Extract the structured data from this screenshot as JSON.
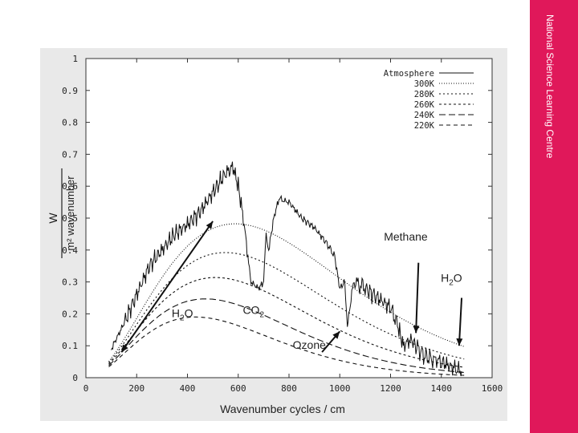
{
  "sidebar": {
    "label": "National Science Learning Centre",
    "color": "#e0185a"
  },
  "figure": {
    "background": "#e9e9e9"
  },
  "chart_data": {
    "type": "line",
    "xlabel": "Wavenumber cycles / cm",
    "ylabel_numerator": "W",
    "ylabel_denominator": "m² wavenumber",
    "xlim": [
      0,
      1600
    ],
    "ylim": [
      0,
      1
    ],
    "x_ticks": [
      0,
      200,
      400,
      600,
      800,
      1000,
      1200,
      1400,
      1600
    ],
    "y_ticks": [
      0,
      0.1,
      0.2,
      0.3,
      0.4,
      0.5,
      0.6,
      0.7,
      0.8,
      0.9,
      1
    ],
    "legend_position": "top-right",
    "series": [
      {
        "name": "Atmosphere",
        "style": "solid",
        "x": [
          100,
          150,
          200,
          250,
          300,
          350,
          400,
          450,
          500,
          550,
          580,
          600,
          620,
          650,
          680,
          700,
          710,
          720,
          740,
          760,
          800,
          850,
          900,
          950,
          980,
          1000,
          1020,
          1030,
          1050,
          1060,
          1100,
          1150,
          1200,
          1230,
          1250,
          1280,
          1300,
          1330,
          1360,
          1400,
          1450,
          1480
        ],
        "y": [
          0.09,
          0.17,
          0.26,
          0.35,
          0.4,
          0.45,
          0.48,
          0.52,
          0.58,
          0.64,
          0.66,
          0.6,
          0.5,
          0.3,
          0.28,
          0.3,
          0.45,
          0.4,
          0.5,
          0.56,
          0.55,
          0.5,
          0.47,
          0.42,
          0.38,
          0.28,
          0.3,
          0.16,
          0.28,
          0.3,
          0.28,
          0.25,
          0.22,
          0.16,
          0.1,
          0.12,
          0.1,
          0.07,
          0.06,
          0.05,
          0.03,
          0.02
        ]
      },
      {
        "name": "300K",
        "style": "dotted-fine",
        "temperature": 300
      },
      {
        "name": "280K",
        "style": "dotted",
        "temperature": 280
      },
      {
        "name": "260K",
        "style": "short-dash",
        "temperature": 260
      },
      {
        "name": "240K",
        "style": "long-dash",
        "temperature": 240
      },
      {
        "name": "220K",
        "style": "dash",
        "temperature": 220
      }
    ],
    "annotations": [
      {
        "text_main": "H",
        "text_sub": "2",
        "text_tail": "O",
        "id": "h2o-left",
        "arrow_from": [
          140,
          0.08
        ],
        "arrow_to": [
          500,
          0.49
        ],
        "double_headed": true,
        "label_at": [
          380,
          0.19
        ]
      },
      {
        "text_main": "CO",
        "text_sub": "2",
        "text_tail": "",
        "id": "co2",
        "label_at": [
          660,
          0.2
        ]
      },
      {
        "text_main": "Ozone",
        "text_sub": "",
        "text_tail": "",
        "id": "ozone",
        "arrow_from": [
          930,
          0.08
        ],
        "arrow_to": [
          1000,
          0.145
        ],
        "label_at": [
          880,
          0.09
        ]
      },
      {
        "text_main": "Methane",
        "text_sub": "",
        "text_tail": "",
        "id": "methane",
        "arrow_from": [
          1310,
          0.36
        ],
        "arrow_to": [
          1300,
          0.14
        ],
        "label_at": [
          1260,
          0.43
        ]
      },
      {
        "text_main": "H",
        "text_sub": "2",
        "text_tail": "O",
        "id": "h2o-right",
        "arrow_from": [
          1480,
          0.25
        ],
        "arrow_to": [
          1470,
          0.1
        ],
        "label_at": [
          1440,
          0.3
        ]
      }
    ]
  }
}
